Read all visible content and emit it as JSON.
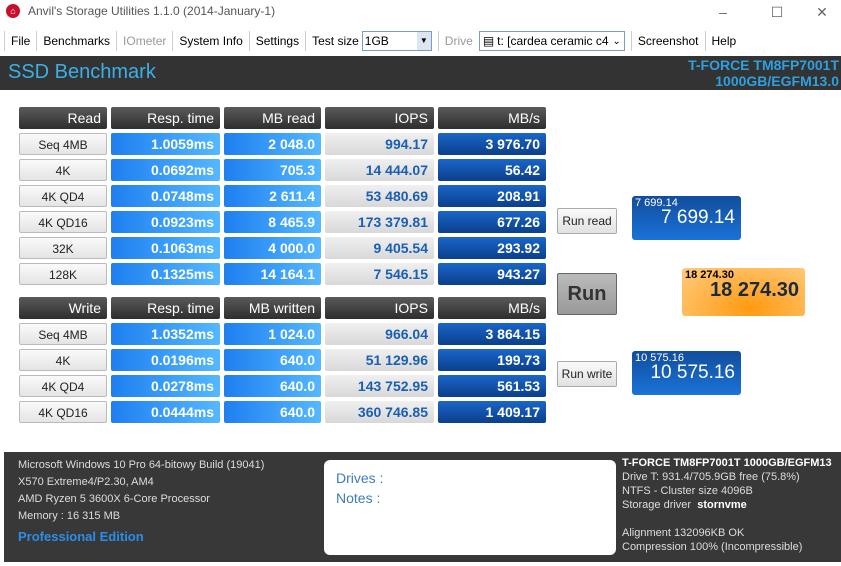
{
  "window": {
    "title": "Anvil's Storage Utilities 1.1.0 (2014-January-1)",
    "minimize": "–",
    "maximize": "☐",
    "close": "✕"
  },
  "menu": {
    "file": "File",
    "benchmarks": "Benchmarks",
    "iometer": "IOmeter",
    "system_info": "System Info",
    "settings": "Settings",
    "test_size_label": "Test size",
    "test_size_value": "1GB",
    "drive_label": "Drive",
    "drive_value": "t: [cardea ceramic c4",
    "screenshot": "Screenshot",
    "help": "Help"
  },
  "header": {
    "title": "SSD Benchmark",
    "device_line1": "T-FORCE TM8FP7001T",
    "device_line2": "1000GB/EGFM13.0"
  },
  "read": {
    "headers": [
      "Read",
      "Resp. time",
      "MB read",
      "IOPS",
      "MB/s"
    ],
    "rows": [
      [
        "Seq 4MB",
        "1.0059ms",
        "2 048.0",
        "994.17",
        "3 976.70"
      ],
      [
        "4K",
        "0.0692ms",
        "705.3",
        "14 444.07",
        "56.42"
      ],
      [
        "4K QD4",
        "0.0748ms",
        "2 611.4",
        "53 480.69",
        "208.91"
      ],
      [
        "4K QD16",
        "0.0923ms",
        "8 465.9",
        "173 379.81",
        "677.26"
      ],
      [
        "32K",
        "0.1063ms",
        "4 000.0",
        "9 405.54",
        "293.92"
      ],
      [
        "128K",
        "0.1325ms",
        "14 164.1",
        "7 546.15",
        "943.27"
      ]
    ]
  },
  "write": {
    "headers": [
      "Write",
      "Resp. time",
      "MB written",
      "IOPS",
      "MB/s"
    ],
    "rows": [
      [
        "Seq 4MB",
        "1.0352ms",
        "1 024.0",
        "966.04",
        "3 864.15"
      ],
      [
        "4K",
        "0.0196ms",
        "640.0",
        "51 129.96",
        "199.73"
      ],
      [
        "4K QD4",
        "0.0278ms",
        "640.0",
        "143 752.95",
        "561.53"
      ],
      [
        "4K QD16",
        "0.0444ms",
        "640.0",
        "360 746.85",
        "1 409.17"
      ]
    ]
  },
  "scores": {
    "run_read": "Run read",
    "run": "Run",
    "run_write": "Run write",
    "read_small": "7 699.14",
    "read": "7 699.14",
    "total_small": "18 274.30",
    "total": "18 274.30",
    "write_small": "10 575.16",
    "write": "10 575.16"
  },
  "system": {
    "os": "Microsoft Windows 10 Pro 64-bitowy Build (19041)",
    "board": "X570 Extreme4/P2.30, AM4",
    "cpu": "AMD Ryzen 5 3600X 6-Core Processor",
    "memory": "Memory : 16 315 MB",
    "edition": "Professional Edition"
  },
  "notes": {
    "drives": "Drives :",
    "notes": "Notes :"
  },
  "drive_info": {
    "model": "T-FORCE TM8FP7001T 1000GB/EGFM13",
    "space": "Drive T: 931.4/705.9GB free (75.8%)",
    "fs": "NTFS - Cluster size 4096B",
    "driver_label": "Storage driver",
    "driver": "stornvme",
    "alignment": "Alignment 132096KB OK",
    "compression": "Compression 100% (Incompressible)"
  }
}
